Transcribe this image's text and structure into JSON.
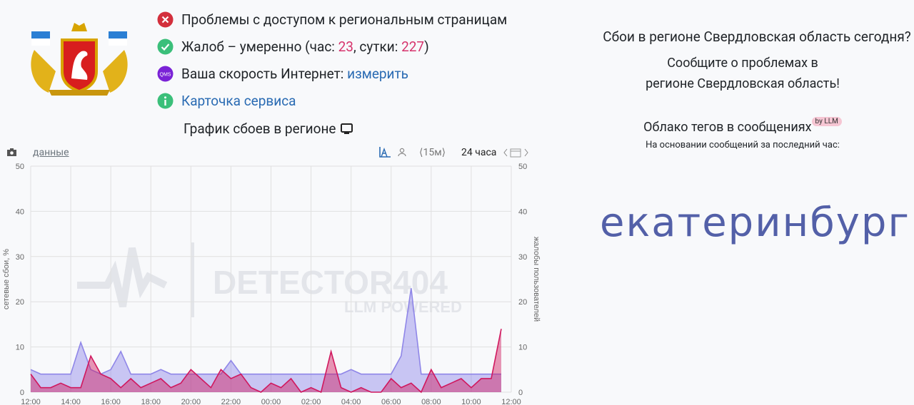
{
  "header": {
    "status": [
      {
        "text": "Проблемы с доступом к региональным страницам"
      },
      {
        "text": "Жалоб – умеренно (час:",
        "hour": 23,
        "sep": ", сутки:",
        "day": 227,
        "end": ")"
      },
      {
        "icon": "QMS",
        "text": "Ваша скорость Интернет:",
        "link": "измерить"
      },
      {
        "link": "Карточка сервиса"
      }
    ],
    "chart_heading": "График сбоев в регионе"
  },
  "toolbar": {
    "data_link": "данные",
    "interval": "⟨15м⟩",
    "period": "24 часа"
  },
  "watermark": {
    "brand": "DETECTOR404",
    "sub": "LLM POWERED"
  },
  "sidebar": {
    "question": "Сбои в регионе Свердловская область сегодня?",
    "report_1": "Сообщите о проблемах в",
    "report_2": "регионе Свердловская область!",
    "tags_title": "Облако тегов в сообщениях",
    "badge": "by LLM",
    "tags_note": "На основании сообщений за последний час:",
    "tag": "екатеринбург"
  },
  "chart_data": {
    "type": "area",
    "ylabel": "сетевые сбои, %",
    "y2label": "жалобы пользователей",
    "x": [
      0,
      0.5,
      1,
      1.5,
      2,
      2.5,
      3,
      3.5,
      4,
      4.5,
      5,
      5.5,
      6,
      6.5,
      7,
      7.5,
      8,
      8.5,
      9,
      9.5,
      10,
      10.5,
      11,
      11.5,
      12,
      12.5,
      13,
      13.5,
      14,
      14.5,
      15,
      15.5,
      16,
      16.5,
      17,
      17.5,
      18,
      18.5,
      19,
      19.5,
      20,
      20.5,
      21,
      21.5,
      22,
      22.5,
      23,
      23.5
    ],
    "series": [
      {
        "name": "сетевые сбои, %",
        "color": "#8f86e8",
        "values": [
          5,
          4,
          4,
          4,
          4,
          11,
          5,
          4,
          5,
          9,
          4,
          4,
          4,
          5,
          4,
          4,
          4,
          4,
          4,
          4,
          7,
          4,
          4,
          4,
          4,
          4,
          4,
          4,
          4,
          4,
          4,
          4,
          5,
          4,
          4,
          4,
          4,
          8,
          23,
          4,
          4,
          4,
          4,
          4,
          4,
          4,
          4,
          4
        ]
      },
      {
        "name": "жалобы пользователей",
        "color": "#d0185e",
        "axis": "y2",
        "values": [
          4,
          1,
          1,
          2,
          1,
          1,
          8,
          4,
          3,
          1,
          3,
          1,
          2,
          3,
          1,
          2,
          5,
          3,
          1,
          5,
          3,
          4,
          1,
          0,
          2,
          1,
          3,
          0,
          1,
          0,
          9,
          1,
          0,
          1,
          0,
          0,
          3,
          1,
          2,
          0,
          5,
          1,
          2,
          3,
          1,
          3,
          3,
          14
        ]
      }
    ],
    "xlim": [
      0,
      24
    ],
    "xticks": [
      {
        "value": 0,
        "label": "12:00"
      },
      {
        "value": 2,
        "label": "14:00"
      },
      {
        "value": 4,
        "label": "16:00"
      },
      {
        "value": 6,
        "label": "18:00"
      },
      {
        "value": 8,
        "label": "20:00"
      },
      {
        "value": 10,
        "label": "22:00"
      },
      {
        "value": 12,
        "label": "00:00"
      },
      {
        "value": 14,
        "label": "02:00"
      },
      {
        "value": 16,
        "label": "04:00"
      },
      {
        "value": 18,
        "label": "06:00"
      },
      {
        "value": 20,
        "label": "08:00"
      },
      {
        "value": 22,
        "label": "10:00"
      },
      {
        "value": 24,
        "label": "12:00"
      }
    ],
    "ylim": [
      0,
      50
    ],
    "yticks": [
      0,
      10,
      20,
      30,
      40,
      50
    ],
    "y2lim": [
      0,
      50
    ],
    "y2ticks": [
      0,
      10,
      20,
      30,
      40,
      50
    ],
    "grid": true
  }
}
